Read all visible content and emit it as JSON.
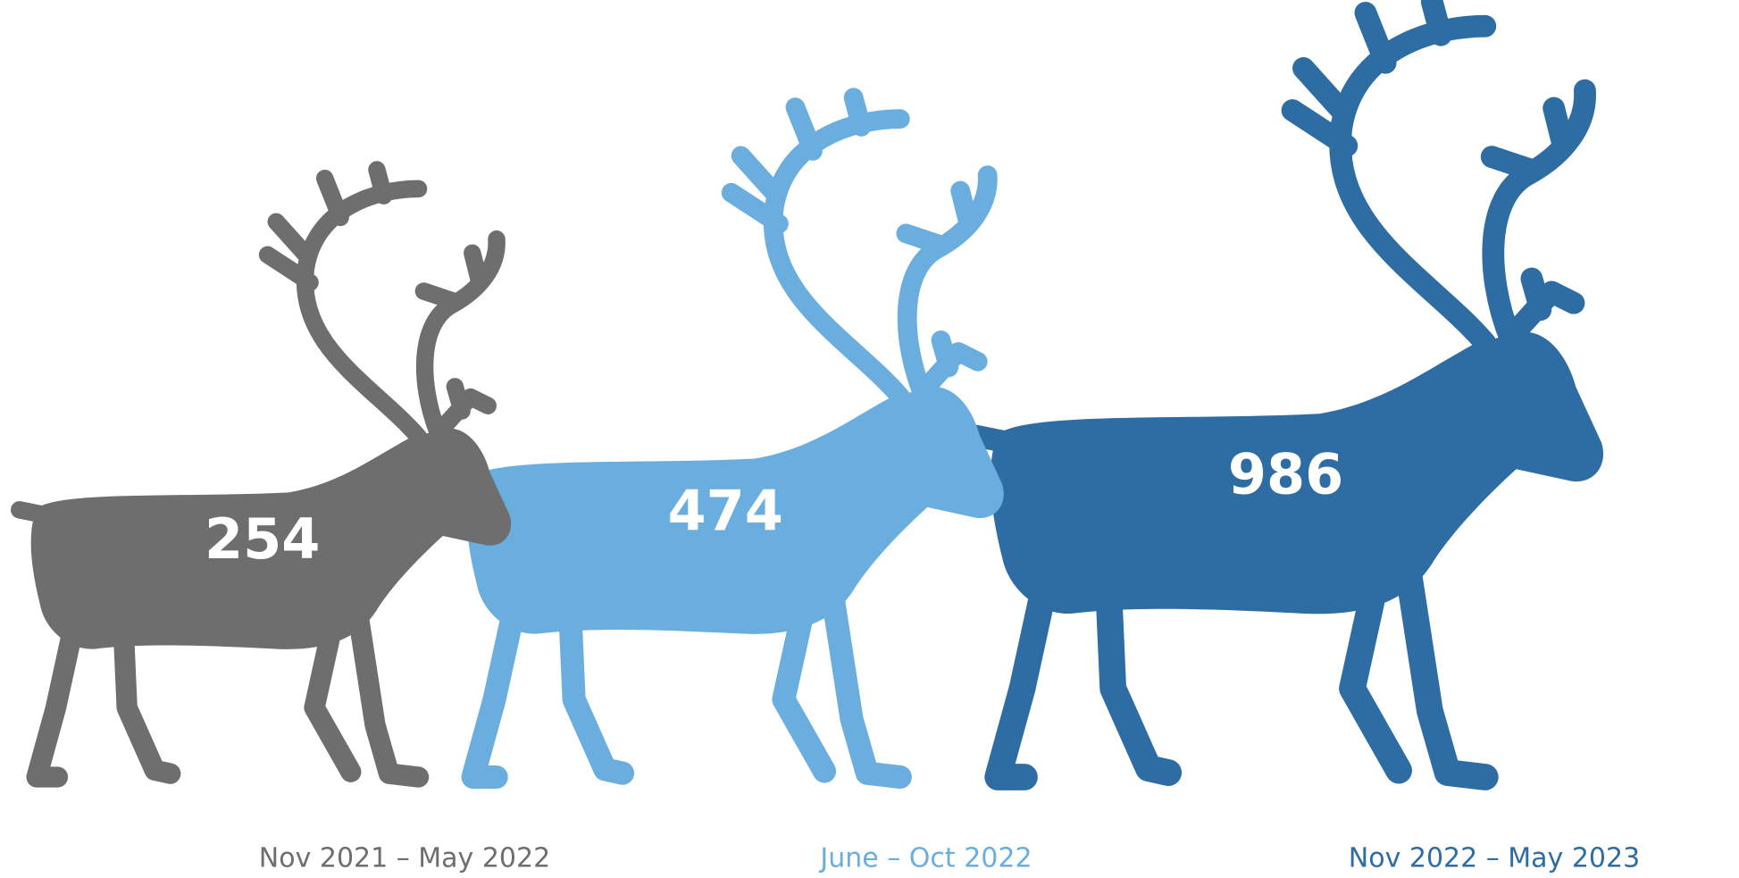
{
  "chart_data": {
    "type": "pictogram",
    "categories": [
      "Nov 2021 – May 2022",
      "June – Oct 2022",
      "Nov 2022 – May 2023"
    ],
    "values": [
      254,
      474,
      986
    ],
    "colors": [
      "#6e6e6e",
      "#6aaee0",
      "#2e6ca4"
    ]
  }
}
